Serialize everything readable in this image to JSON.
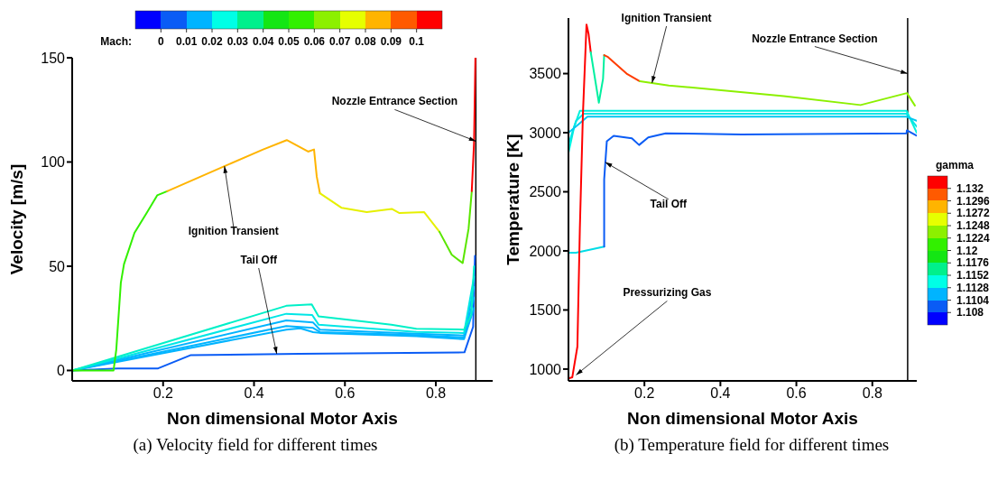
{
  "chart_data": [
    {
      "type": "line",
      "title": "(a) Velocity field for different times",
      "xlabel": "Non dimensional Motor Axis",
      "ylabel": "Velocity [m/s]",
      "xlim": [
        0,
        0.925
      ],
      "xticks": [
        0.2,
        0.4,
        0.6,
        0.8
      ],
      "ylim": [
        -5,
        150
      ],
      "yticks": [
        0,
        50,
        100,
        150
      ],
      "grid": false,
      "marker": "none",
      "clabel": "Mach:",
      "clim": [
        0,
        0.1
      ],
      "cticks": [
        0,
        0.01,
        0.02,
        0.03,
        0.04,
        0.05,
        0.06,
        0.07,
        0.08,
        0.09,
        0.1
      ],
      "ref_lines": [
        {
          "axis": "x",
          "value": 0.888,
          "color": "#000000"
        }
      ],
      "annotations": [
        {
          "text": "Nozzle Entrance Section",
          "x": 0.888,
          "y": 110
        },
        {
          "text": "Ignition Transient",
          "x": 0.335,
          "y": 98
        },
        {
          "text": "Tail Off",
          "x": 0.45,
          "y": 8
        }
      ],
      "series": [
        {
          "color": "#0a5cf5",
          "x": [
            0,
            0.1,
            0.189,
            0.26,
            0.5,
            0.863,
            0.882,
            0.886
          ],
          "values": [
            0,
            1,
            1,
            7.3,
            8,
            8.7,
            21,
            55
          ]
        },
        {
          "color": "#00b4ff",
          "x": [
            0,
            0.471,
            0.502,
            0.53,
            0.545,
            0.757,
            0.862,
            0.884
          ],
          "values": [
            0,
            19.6,
            20.2,
            18.4,
            18,
            16.4,
            15,
            30
          ]
        },
        {
          "color": "#00b4ff",
          "x": [
            0,
            0.471,
            0.53,
            0.545,
            0.757,
            0.862,
            0.884
          ],
          "values": [
            0,
            21.3,
            20.4,
            18.4,
            17,
            15.8,
            35
          ]
        },
        {
          "color": "#00b4ff",
          "x": [
            0,
            0.471,
            0.53,
            0.545,
            0.757,
            0.862,
            0.884
          ],
          "values": [
            0,
            24,
            23,
            19.6,
            17.6,
            16.8,
            40
          ]
        },
        {
          "color": "#00e6e6",
          "x": [
            0,
            0.471,
            0.528,
            0.542,
            0.757,
            0.862,
            0.884
          ],
          "values": [
            0,
            27.2,
            26.6,
            22,
            18.5,
            18,
            45
          ]
        },
        {
          "color": "#00f0c8",
          "x": [
            0,
            0.471,
            0.527,
            0.542,
            0.702,
            0.757,
            0.862,
            0.878,
            0.884
          ],
          "values": [
            0,
            31,
            31.7,
            26,
            22,
            20,
            19.6,
            26.7,
            50
          ]
        },
        {
          "color": "#32f000",
          "x": [
            0,
            0.091,
            0.097,
            0.107,
            0.114,
            0.137,
            0.165,
            0.187,
            0.209
          ],
          "values": [
            0,
            0,
            10,
            42,
            51,
            66,
            76,
            84,
            86
          ]
        },
        {
          "color": "#ffb400",
          "x": [
            0.209,
            0.335,
            0.42,
            0.472,
            0.519,
            0.532,
            0.538,
            0.545
          ],
          "values": [
            86,
            98,
            106,
            110.5,
            105,
            106,
            93,
            85
          ]
        },
        {
          "color": "#e6f000",
          "x": [
            0.545,
            0.593,
            0.648,
            0.703,
            0.72,
            0.774,
            0.808
          ],
          "values": [
            85,
            78,
            76,
            77.5,
            75.5,
            76,
            66.5
          ]
        },
        {
          "color": "#5ae600",
          "x": [
            0.808,
            0.835,
            0.859,
            0.872,
            0.879
          ],
          "values": [
            66.5,
            55.5,
            51.5,
            68,
            86
          ]
        },
        {
          "color": "#ff0000",
          "x": [
            0.879,
            0.884,
            0.887
          ],
          "values": [
            86,
            109,
            150
          ]
        }
      ]
    },
    {
      "type": "line",
      "title": "(b) Temperature field for different times",
      "xlabel": "Non dimensional Motor Axis",
      "ylabel": "Temperature [K]",
      "xlim": [
        0,
        0.917
      ],
      "xticks": [
        0.2,
        0.4,
        0.6,
        0.8
      ],
      "ylim": [
        900,
        3970
      ],
      "yticks": [
        1000,
        1500,
        2000,
        2500,
        3000,
        3500
      ],
      "grid": false,
      "marker": "none",
      "clabel": "gamma",
      "clim": [
        1.108,
        1.132
      ],
      "cticks": [
        1.108,
        1.1104,
        1.1128,
        1.1152,
        1.1176,
        1.12,
        1.1224,
        1.1248,
        1.1272,
        1.1296,
        1.132
      ],
      "ref_lines": [
        {
          "axis": "x",
          "value": 0.893,
          "color": "#000000"
        }
      ],
      "annotations": [
        {
          "text": "Ignition Transient",
          "x": 0.22,
          "y": 3420
        },
        {
          "text": "Nozzle Entrance Section",
          "x": 0.893,
          "y": 3500
        },
        {
          "text": "Tail Off",
          "x": 0.097,
          "y": 2750
        },
        {
          "text": "Pressurizing Gas",
          "x": 0.02,
          "y": 950
        }
      ],
      "series": [
        {
          "color": "#00f0dc",
          "x": [
            0,
            0.015,
            0.03,
            0.89,
            0.917
          ],
          "values": [
            2830,
            3050,
            3185,
            3185,
            3000
          ]
        },
        {
          "color": "#00e6e6",
          "x": [
            0,
            0.02,
            0.04,
            0.89,
            0.917
          ],
          "values": [
            2900,
            3100,
            3160,
            3160,
            3050
          ]
        },
        {
          "color": "#00c8f0",
          "x": [
            0,
            0.03,
            0.05,
            0.89,
            0.917
          ],
          "values": [
            3000,
            3080,
            3135,
            3135,
            3100
          ]
        },
        {
          "color": "#00dce6",
          "x": [
            0,
            0.02,
            0.094
          ],
          "values": [
            1985,
            1985,
            2036
          ]
        },
        {
          "color": "#0a5cf5",
          "x": [
            0.094,
            0.094,
            0.101,
            0.119,
            0.167,
            0.186,
            0.21,
            0.256,
            0.456,
            0.89,
            0.891,
            0.917
          ],
          "values": [
            2036,
            2605,
            2928,
            2973,
            2953,
            2896,
            2960,
            2995,
            2985,
            2995,
            3020,
            2975
          ]
        },
        {
          "color": "#ff0000",
          "x": [
            0,
            0.01,
            0.0235,
            0.03,
            0.038,
            0.0475,
            0.053,
            0.0587
          ],
          "values": [
            920,
            930,
            1190,
            2192,
            3153,
            3914,
            3834,
            3680
          ]
        },
        {
          "color": "#00f0a0",
          "x": [
            0.0587,
            0.08,
            0.091,
            0.094
          ],
          "values": [
            3680,
            3254,
            3455,
            3656
          ]
        },
        {
          "color": "#ff3c00",
          "x": [
            0.094,
            0.104,
            0.153,
            0.188
          ],
          "values": [
            3656,
            3640,
            3500,
            3435
          ]
        },
        {
          "color": "#8cf000",
          "x": [
            0.188,
            0.264,
            0.567,
            0.769,
            0.891,
            0.912
          ],
          "values": [
            3435,
            3400,
            3310,
            3234,
            3335,
            3230
          ]
        }
      ]
    }
  ]
}
